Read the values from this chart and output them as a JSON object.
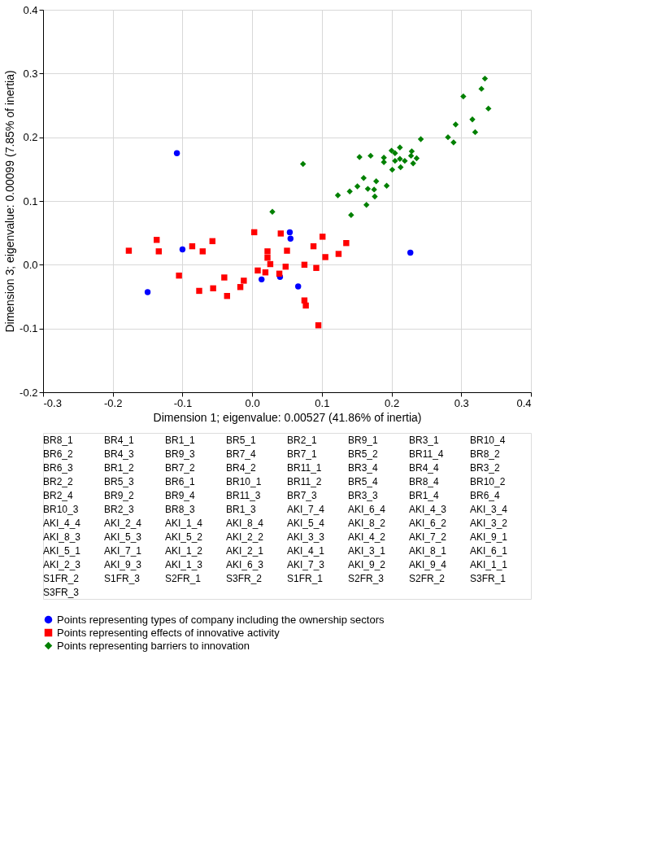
{
  "chart_data": {
    "type": "scatter",
    "xlabel": "Dimension 1; eigenvalue: 0.00527 (41.86% of inertia)",
    "ylabel": "Dimension 3; eigenvalue: 0.00099 (7.85% of inertia)",
    "xlim": [
      -0.3,
      0.4
    ],
    "xticks": [
      -0.3,
      -0.2,
      -0.1,
      {
        "value": 0,
        "label": "0.0"
      },
      0.1,
      0.2,
      0.3,
      0.4
    ],
    "ylim": [
      -0.2,
      0.4
    ],
    "yticks": [
      -0.2,
      -0.1,
      {
        "value": 0,
        "label": "0.0"
      },
      0.1,
      0.2,
      0.3,
      0.4
    ],
    "grid": true,
    "legend": "bottom",
    "series": [
      {
        "name": "Points representing types of company including the ownership sectors",
        "color": "#0000ff",
        "marker": "circle",
        "x": [
          0.227,
          0.054,
          0.055,
          0.066,
          0.04,
          0.0135,
          -0.1,
          -0.15,
          -0.108
        ],
        "values": [
          0.019,
          0.051,
          0.041,
          -0.034,
          -0.019,
          -0.023,
          0.024,
          -0.043,
          0.175
        ]
      },
      {
        "name": "Points representing effects of innovative activity",
        "color": "#ff0000",
        "marker": "square",
        "x": [
          0.135,
          0.124,
          0.101,
          0.105,
          0.088,
          0.092,
          0.075,
          0.095,
          0.075,
          0.077,
          0.05,
          0.048,
          0.041,
          0.039,
          0.022,
          0.022,
          0.026,
          0.019,
          0.008,
          0.003,
          -0.012,
          -0.017,
          -0.04,
          -0.036,
          -0.056,
          -0.057,
          -0.071,
          -0.076,
          -0.086,
          -0.105,
          -0.134,
          -0.137,
          -0.177
        ],
        "values": [
          0.034,
          0.017,
          0.044,
          0.012,
          0.029,
          -0.005,
          0.0,
          -0.095,
          -0.056,
          -0.064,
          0.022,
          -0.003,
          0.049,
          -0.014,
          0.021,
          0.011,
          0.001,
          -0.012,
          -0.009,
          0.051,
          -0.025,
          -0.035,
          -0.02,
          -0.049,
          -0.037,
          0.037,
          0.021,
          -0.041,
          0.029,
          -0.017,
          0.021,
          0.039,
          0.022
        ]
      },
      {
        "name": "Points representing barriers to innovation",
        "color": "#008000",
        "marker": "diamond",
        "x": [
          0.334,
          0.329,
          0.339,
          0.303,
          0.316,
          0.292,
          0.32,
          0.289,
          0.281,
          0.242,
          0.236,
          0.229,
          0.228,
          0.231,
          0.219,
          0.212,
          0.212,
          0.213,
          0.205,
          0.205,
          0.201,
          0.2,
          0.189,
          0.189,
          0.17,
          0.154,
          0.193,
          0.178,
          0.175,
          0.176,
          0.166,
          0.16,
          0.151,
          0.14,
          0.164,
          0.123,
          0.142,
          0.073,
          0.029
        ],
        "values": [
          0.292,
          0.276,
          0.245,
          0.264,
          0.228,
          0.22,
          0.208,
          0.192,
          0.2,
          0.197,
          0.167,
          0.178,
          0.171,
          0.159,
          0.163,
          0.184,
          0.166,
          0.153,
          0.175,
          0.163,
          0.149,
          0.179,
          0.168,
          0.161,
          0.171,
          0.169,
          0.124,
          0.131,
          0.118,
          0.107,
          0.119,
          0.136,
          0.123,
          0.115,
          0.094,
          0.109,
          0.078,
          0.158,
          0.083
        ]
      }
    ],
    "annotations": [
      "BR8_1",
      "BR4_1",
      "BR1_1",
      "BR5_1",
      "BR2_1",
      "BR9_1",
      "BR3_1",
      "BR10_4",
      "BR6_2",
      "BR4_3",
      "BR9_3",
      "BR7_4",
      "BR7_1",
      "BR5_2",
      "BR11_4",
      "BR8_2",
      "BR6_3",
      "BR1_2",
      "BR7_2",
      "BR4_2",
      "BR11_1",
      "BR3_4",
      "BR4_4",
      "BR3_2",
      "BR2_2",
      "BR5_3",
      "BR6_1",
      "BR10_1",
      "BR11_2",
      "BR5_4",
      "BR8_4",
      "BR10_2",
      "BR2_4",
      "BR9_2",
      "BR9_4",
      "BR11_3",
      "BR7_3",
      "BR3_3",
      "BR1_4",
      "BR6_4",
      "BR10_3",
      "BR2_3",
      "BR8_3",
      "BR1_3",
      "AKI_7_4",
      "AKI_6_4",
      "AKI_4_3",
      "AKI_3_4",
      "AKI_4_4",
      "AKI_2_4",
      "AKI_1_4",
      "AKI_8_4",
      "AKI_5_4",
      "AKI_8_2",
      "AKI_6_2",
      "AKI_3_2",
      "AKI_8_3",
      "AKI_5_3",
      "AKI_5_2",
      "AKI_2_2",
      "AKI_3_3",
      "AKI_4_2",
      "AKI_7_2",
      "AKI_9_1",
      "AKI_5_1",
      "AKI_7_1",
      "AKI_1_2",
      "AKI_2_1",
      "AKI_4_1",
      "AKI_3_1",
      "AKI_8_1",
      "AKI_6_1",
      "AKI_2_3",
      "AKI_9_3",
      "AKI_1_3",
      "AKI_6_3",
      "AKI_7_3",
      "AKI_9_2",
      "AKI_9_4",
      "AKI_1_1",
      "S1FR_2",
      "S1FR_3",
      "S2FR_1",
      "S3FR_2",
      "S1FR_1",
      "S2FR_3",
      "S2FR_2",
      "S3FR_1",
      "S3FR_3"
    ]
  }
}
